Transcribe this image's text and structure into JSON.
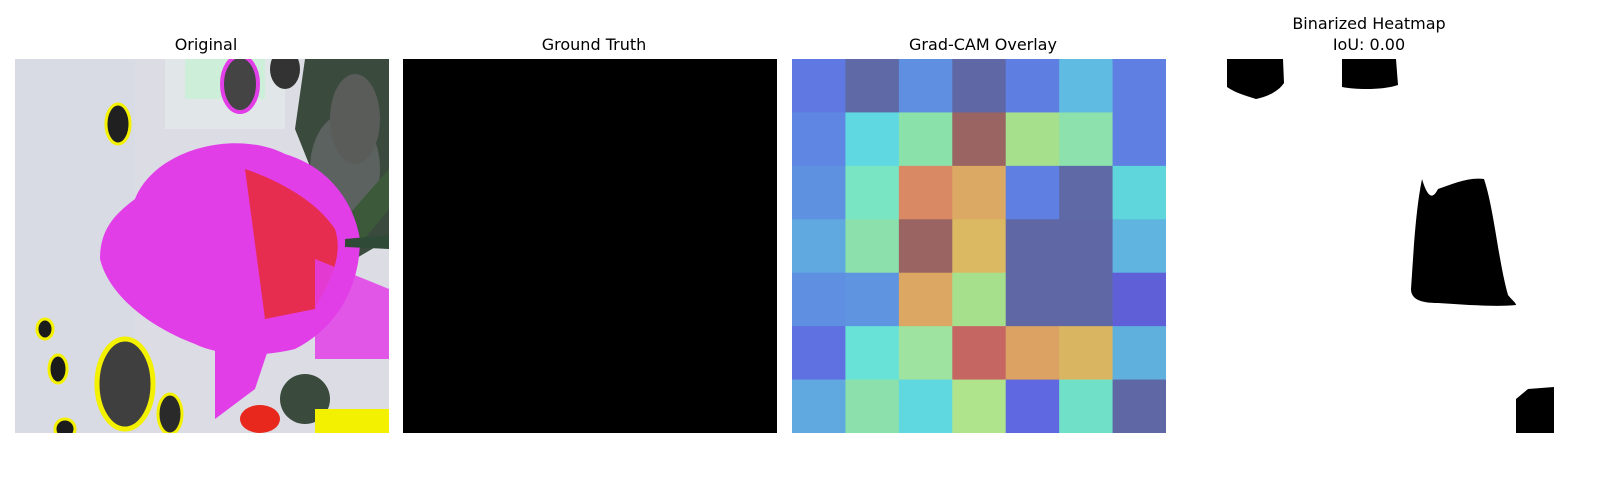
{
  "panels": [
    {
      "title": "Original",
      "icon": "leaf-photo"
    },
    {
      "title": "Ground Truth",
      "icon": "empty-mask"
    },
    {
      "title": "Grad-CAM Overlay",
      "icon": "heatmap-grid"
    },
    {
      "title_line1": "Binarized Heatmap",
      "title_line2": "IoU: 0.00",
      "icon": "binary-mask"
    }
  ],
  "colors": {
    "background": "#ffffff",
    "mask_black": "#000000",
    "leaf_magenta": "#e23ee8",
    "leaf_red": "#e8281c",
    "spot_yellow": "#f3f000"
  },
  "heatmap_grid": [
    [
      "#5f78e2",
      "#5f69a6",
      "#5e8fe0",
      "#5f68a5",
      "#5e7fe1",
      "#5fbbe2",
      "#5f80e2"
    ],
    [
      "#5f86e2",
      "#5fd8e2",
      "#8ae1aa",
      "#996461",
      "#a6e08d",
      "#8ce1ac",
      "#5f80e2"
    ],
    [
      "#5e91e0",
      "#79e5c2",
      "#d98963",
      "#dba963",
      "#5f80e2",
      "#5f69a6",
      "#5fd5dc"
    ],
    [
      "#5fa8e0",
      "#8ce0ac",
      "#996461",
      "#dbb862",
      "#5f68a5",
      "#5f68a5",
      "#5fb4e0"
    ],
    [
      "#5e8fe0",
      "#5f95e0",
      "#dba763",
      "#a6e08d",
      "#5f68a5",
      "#5f68a5",
      "#5f60d8"
    ],
    [
      "#5f70e0",
      "#68e2d6",
      "#9ee3a0",
      "#c66663",
      "#dca263",
      "#d9b561",
      "#5fb0dc"
    ],
    [
      "#5fa8e0",
      "#8ce0ac",
      "#5fd8e0",
      "#b0e48c",
      "#5f68e0",
      "#70e0c8",
      "#5f68a5"
    ]
  ]
}
